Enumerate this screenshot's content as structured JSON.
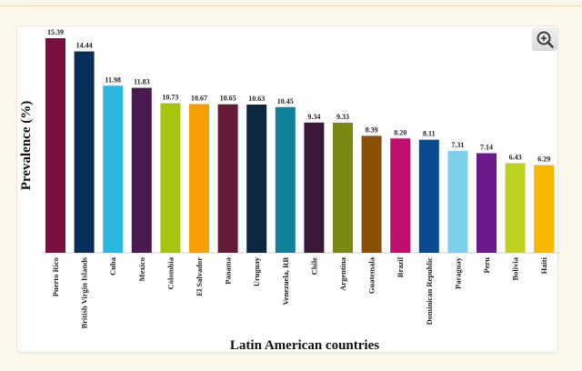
{
  "zoom_icon": "zoom-in-icon",
  "chart_data": {
    "type": "bar",
    "title": "",
    "xlabel": "Latin American countries",
    "ylabel": "Prevalence (%)",
    "ylim": [
      0,
      15.39
    ],
    "grid": false,
    "legend": "none",
    "categories": [
      "Puerto Rico",
      "British Virgin Islands",
      "Cuba",
      "Mexico",
      "Colombia",
      "El Salvador",
      "Panama",
      "Uruguay",
      "Venezuela, RB",
      "Chile",
      "Argentina",
      "Guatemala",
      "Brazil",
      "Dominican Republic",
      "Paraguay",
      "Peru",
      "Bolivia",
      "Haiti"
    ],
    "values": [
      15.39,
      14.44,
      11.98,
      11.83,
      10.73,
      10.67,
      10.65,
      10.63,
      10.45,
      9.34,
      9.33,
      8.39,
      8.2,
      8.11,
      7.31,
      7.14,
      6.43,
      6.29
    ],
    "value_labels": [
      "15.39",
      "14.44",
      "11.98",
      "11.83",
      "10.73",
      "10.67",
      "10.65",
      "10.63",
      "10.45",
      "9.34",
      "9.33",
      "8.39",
      "8.20",
      "8.11",
      "7.31",
      "7.14",
      "6.43",
      "6.29"
    ],
    "colors": [
      "#7a1040",
      "#06305a",
      "#2bb8e0",
      "#4a1a50",
      "#a9c40d",
      "#f6a000",
      "#651a3a",
      "#0b2840",
      "#10819a",
      "#3a1838",
      "#7a8a10",
      "#8a5008",
      "#c00e6e",
      "#0a4a90",
      "#7dd0ea",
      "#6a1a8a",
      "#bed020",
      "#f8b800"
    ]
  }
}
